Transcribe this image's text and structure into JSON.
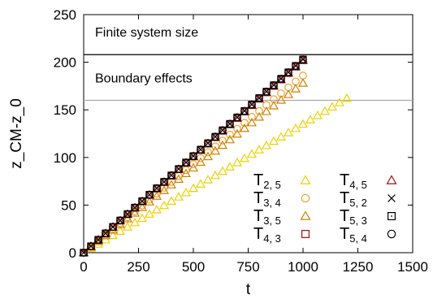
{
  "chart_data": {
    "type": "scatter",
    "title": "",
    "xlabel": "t",
    "ylabel": "z_CM-z_0",
    "xlim": [
      0,
      1500
    ],
    "ylim": [
      0,
      250
    ],
    "x_ticks": [
      "0",
      "250",
      "500",
      "750",
      "1000",
      "1250",
      "1500"
    ],
    "y_ticks": [
      "0",
      "50",
      "100",
      "150",
      "200",
      "250"
    ],
    "grid": false,
    "legend_position": "bottom-right",
    "reference_lines": [
      {
        "y": 208,
        "label": "Finite system size",
        "color": "#000000"
      },
      {
        "y": 160,
        "label": "Boundary effects",
        "color": "#aaaaaa"
      }
    ],
    "series": [
      {
        "name": "T",
        "sub": "2, 5",
        "marker": "triangle",
        "color": "#f0d000",
        "x_end": 1200,
        "y_end": 162
      },
      {
        "name": "T",
        "sub": "3, 4",
        "marker": "circle",
        "color": "#f0a030",
        "x_end": 1000,
        "y_end": 186
      },
      {
        "name": "T",
        "sub": "3, 5",
        "marker": "triangle",
        "color": "#d08000",
        "x_end": 1000,
        "y_end": 178
      },
      {
        "name": "T",
        "sub": "4, 3",
        "marker": "square",
        "color": "#a01010",
        "x_end": 1000,
        "y_end": 202
      },
      {
        "name": "T",
        "sub": "4, 5",
        "marker": "triangle",
        "color": "#a01010",
        "x_end": 1000,
        "y_end": 202
      },
      {
        "name": "T",
        "sub": "5, 2",
        "marker": "cross",
        "color": "#000000",
        "x_end": 1000,
        "y_end": 203
      },
      {
        "name": "T",
        "sub": "5, 3",
        "marker": "dotsquare",
        "color": "#000000",
        "x_end": 1000,
        "y_end": 203
      },
      {
        "name": "T",
        "sub": "5, 4",
        "marker": "circle",
        "color": "#000000",
        "x_end": 1000,
        "y_end": 203
      }
    ],
    "point_spacing": 33.33
  }
}
